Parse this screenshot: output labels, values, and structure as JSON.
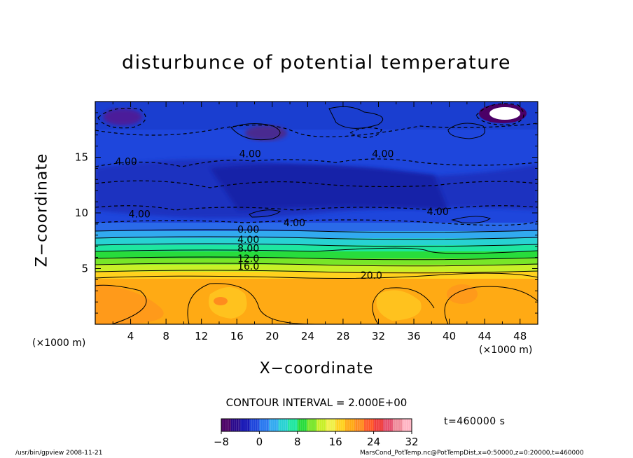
{
  "chart_data": {
    "type": "heatmap",
    "title": "disturbunce of potential temperature",
    "xlabel": "X−coordinate",
    "ylabel": "Z−coordinate",
    "x_unit": "(×1000 m)",
    "x_ticks": [
      "4",
      "8",
      "12",
      "16",
      "20",
      "24",
      "28",
      "32",
      "36",
      "40",
      "44",
      "48"
    ],
    "y_ticks": [
      "5",
      "10",
      "15"
    ],
    "xlim": [
      0,
      50
    ],
    "ylim": [
      0,
      20
    ],
    "contour_interval": "CONTOUR INTERVAL = 2.000E+00",
    "contour_labels": [
      {
        "text": "4.00",
        "x": 3.5,
        "z": 14.3
      },
      {
        "text": "4.00",
        "x": 17.5,
        "z": 15.0
      },
      {
        "text": "4.00",
        "x": 32.5,
        "z": 15.0
      },
      {
        "text": "4.00",
        "x": 5.0,
        "z": 9.6
      },
      {
        "text": "4.00",
        "x": 22.5,
        "z": 8.8
      },
      {
        "text": "4.00",
        "x": 38.7,
        "z": 9.8
      },
      {
        "text": "0.00",
        "x": 17.3,
        "z": 8.2
      },
      {
        "text": "4.00",
        "x": 17.3,
        "z": 7.3
      },
      {
        "text": "8.00",
        "x": 17.3,
        "z": 6.5
      },
      {
        "text": "12.0",
        "x": 17.3,
        "z": 5.6
      },
      {
        "text": "16.0",
        "x": 17.3,
        "z": 4.9
      },
      {
        "text": "20.0",
        "x": 31.2,
        "z": 4.1
      }
    ],
    "colorbar": {
      "min": -8,
      "max": 32,
      "ticks": [
        "−8",
        "0",
        "8",
        "16",
        "24",
        "32"
      ],
      "colors": [
        "#4b0066",
        "#2a0a8c",
        "#1414b4",
        "#1e46dc",
        "#2878f0",
        "#32aaf0",
        "#28d2d2",
        "#1ee6a0",
        "#28dc3c",
        "#78e628",
        "#c8f028",
        "#f0f046",
        "#ffd21e",
        "#ffaa14",
        "#ff8c1e",
        "#ff5a28",
        "#f03c3c",
        "#e6506e",
        "#f08c9b",
        "#ffb4c3"
      ]
    },
    "grid": false,
    "legend": "colorbar-bottom"
  },
  "annotations": {
    "time": "t=460000  s",
    "footer_left": "/usr/bin/gpview   2008-11-21",
    "footer_right": "MarsCond_PotTemp.nc@PotTempDist,x=0:50000,z=0:20000,t=460000"
  }
}
